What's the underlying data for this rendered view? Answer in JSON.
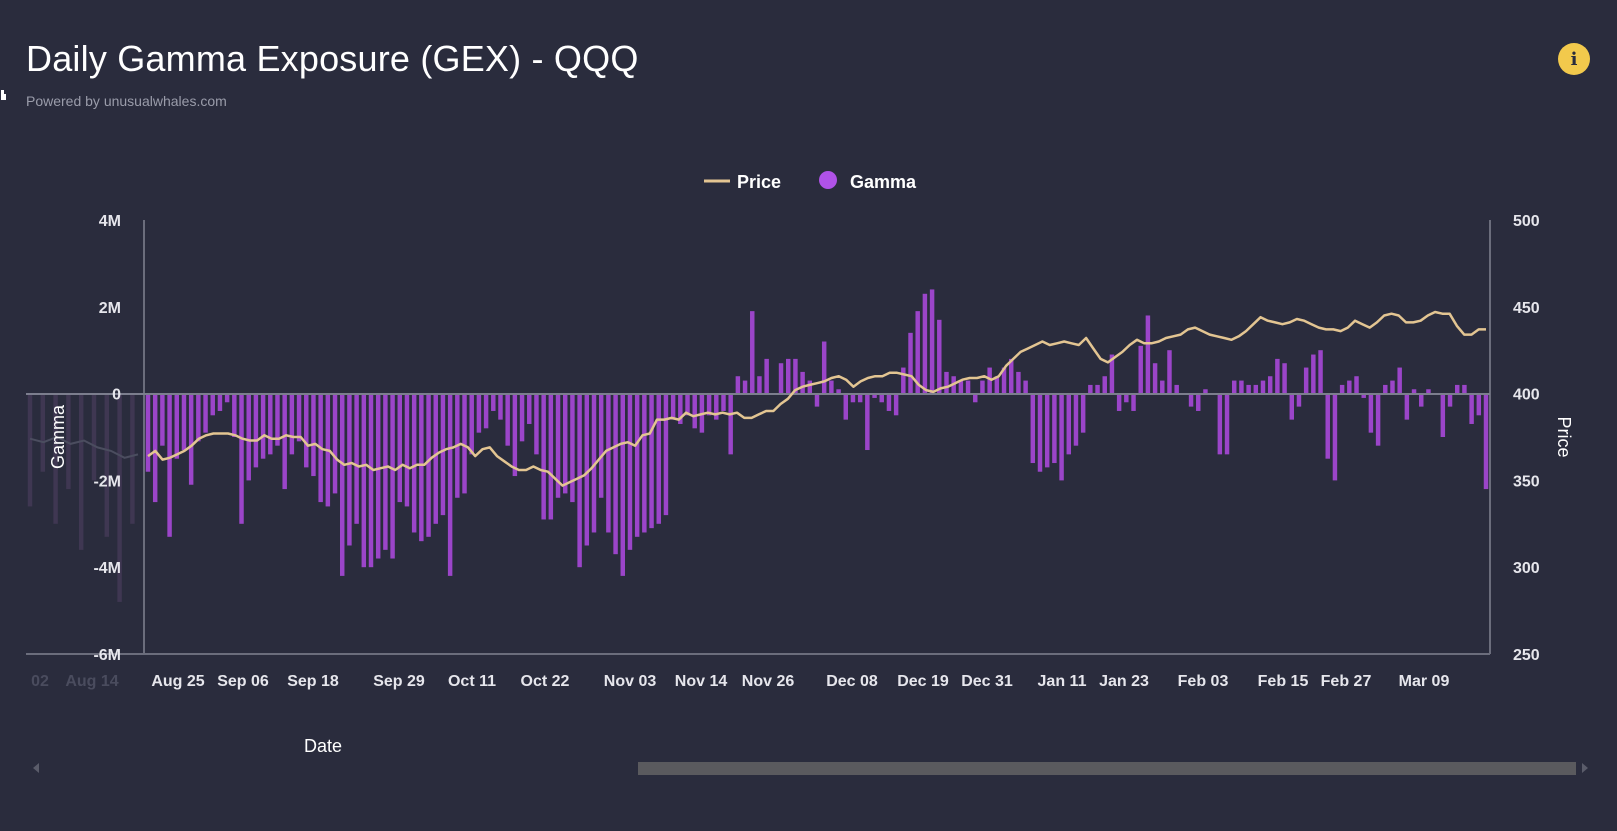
{
  "header": {
    "title": "Daily Gamma Exposure (GEX) - QQQ",
    "subtitle": "Powered by unusualwhales.com",
    "info_icon": "info-icon"
  },
  "colors": {
    "background": "#2a2c3d",
    "gamma": "#9b45c9",
    "price": "#e3c592",
    "axis": "#6b6d7c"
  },
  "chart_data": {
    "type": "bar",
    "title": "Daily Gamma Exposure (GEX) - QQQ",
    "legend": [
      {
        "name": "Price",
        "marker": "line",
        "color": "#e3c592"
      },
      {
        "name": "Gamma",
        "marker": "circle",
        "color": "#b052e8"
      }
    ],
    "legend_position": "top-center",
    "xlabel": "Date",
    "ylabel_left": "Gamma",
    "ylabel_right": "Price",
    "y_left_ticks": [
      "4M",
      "2M",
      "0",
      "-2M",
      "-4M",
      "-6M"
    ],
    "y_left_range": [
      -6000000,
      4000000
    ],
    "y_right_ticks": [
      "500",
      "450",
      "400",
      "350",
      "300",
      "250"
    ],
    "y_right_range": [
      250,
      500
    ],
    "x_ticks_faded": [
      "02",
      "Aug 14"
    ],
    "x_ticks": [
      "Aug 25",
      "Sep 06",
      "Sep 18",
      "Sep 29",
      "Oct 11",
      "Oct 22",
      "Nov 03",
      "Nov 14",
      "Nov 26",
      "Dec 08",
      "Dec 19",
      "Dec 31",
      "Jan 11",
      "Jan 23",
      "Feb 03",
      "Feb 15",
      "Feb 27",
      "Mar 09"
    ],
    "grid": false,
    "series": [
      {
        "name": "Gamma",
        "type": "bar",
        "axis": "left",
        "values": [
          -1.8,
          -2.5,
          -1.2,
          -3.3,
          -1.5,
          -1.3,
          -2.1,
          -1.1,
          -0.9,
          -0.5,
          -0.4,
          -0.2,
          -1.0,
          -3.0,
          -2.0,
          -1.7,
          -1.5,
          -1.4,
          -1.2,
          -2.2,
          -1.4,
          -1.1,
          -1.7,
          -1.9,
          -2.5,
          -2.6,
          -2.3,
          -4.2,
          -3.5,
          -3.0,
          -4.0,
          -4.0,
          -3.8,
          -3.6,
          -3.8,
          -2.5,
          -2.6,
          -3.2,
          -3.4,
          -3.3,
          -3.0,
          -2.8,
          -4.2,
          -2.4,
          -2.3,
          -1.4,
          -0.9,
          -0.8,
          -0.4,
          -0.6,
          -1.2,
          -1.9,
          -1.1,
          -0.7,
          -1.4,
          -2.9,
          -2.9,
          -2.4,
          -2.3,
          -2.5,
          -4.0,
          -3.5,
          -3.2,
          -2.4,
          -3.2,
          -3.7,
          -4.2,
          -3.6,
          -3.3,
          -3.2,
          -3.1,
          -3.0,
          -2.8,
          -0.6,
          -0.7,
          -0.5,
          -0.8,
          -0.9,
          -0.5,
          -0.6,
          -0.4,
          -1.4,
          0.4,
          0.3,
          1.9,
          0.4,
          0.8,
          0.0,
          0.7,
          0.8,
          0.8,
          0.5,
          0.3,
          -0.3,
          1.2,
          0.3,
          0.1,
          -0.6,
          -0.2,
          -0.2,
          -1.3,
          -0.1,
          -0.2,
          -0.4,
          -0.5,
          0.6,
          1.4,
          1.9,
          2.3,
          2.4,
          1.7,
          0.5,
          0.4,
          0.3,
          0.3,
          -0.2,
          0.3,
          0.6,
          0.4,
          0.6,
          0.8,
          0.5,
          0.3,
          -1.6,
          -1.8,
          -1.7,
          -1.6,
          -2.0,
          -1.4,
          -1.2,
          -0.9,
          0.2,
          0.2,
          0.4,
          0.9,
          -0.4,
          -0.2,
          -0.4,
          1.1,
          1.8,
          0.7,
          0.3,
          1.0,
          0.2,
          0.0,
          -0.3,
          -0.4,
          0.1,
          0.0,
          -1.4,
          -1.4,
          0.3,
          0.3,
          0.2,
          0.2,
          0.3,
          0.4,
          0.8,
          0.7,
          -0.6,
          -0.3,
          0.6,
          0.9,
          1.0,
          -1.5,
          -2.0,
          0.2,
          0.3,
          0.4,
          -0.1,
          -0.9,
          -1.2,
          0.2,
          0.3,
          0.6,
          -0.6,
          0.1,
          -0.3,
          0.1,
          0.0,
          -1.0,
          -0.3,
          0.2,
          0.2,
          -0.7,
          -0.5,
          -2.2
        ],
        "color": "#9b45c9"
      },
      {
        "name": "Price",
        "type": "line",
        "axis": "right",
        "values": [
          364,
          367,
          362,
          363,
          365,
          367,
          370,
          374,
          376,
          377,
          377,
          377,
          376,
          374,
          373,
          373,
          376,
          374,
          374,
          376,
          375,
          375,
          370,
          371,
          368,
          367,
          362,
          359,
          360,
          358,
          359,
          356,
          357,
          358,
          356,
          359,
          357,
          359,
          359,
          363,
          366,
          368,
          369,
          371,
          369,
          364,
          368,
          369,
          364,
          361,
          358,
          356,
          356,
          358,
          356,
          355,
          351,
          347,
          349,
          351,
          353,
          357,
          362,
          367,
          369,
          371,
          372,
          370,
          376,
          377,
          385,
          385,
          386,
          385,
          389,
          387,
          388,
          389,
          388,
          389,
          388,
          389,
          386,
          386,
          388,
          390,
          390,
          394,
          397,
          402,
          404,
          405,
          406,
          407,
          409,
          410,
          408,
          404,
          407,
          409,
          410,
          410,
          412,
          412,
          411,
          410,
          405,
          402,
          401,
          403,
          404,
          406,
          408,
          409,
          409,
          410,
          408,
          410,
          416,
          420,
          424,
          426,
          428,
          430,
          428,
          429,
          430,
          429,
          428,
          432,
          426,
          420,
          418,
          421,
          424,
          428,
          431,
          429,
          429,
          430,
          432,
          433,
          434,
          437,
          438,
          436,
          434,
          433,
          432,
          431,
          433,
          436,
          440,
          444,
          442,
          441,
          440,
          441,
          443,
          442,
          440,
          438,
          437,
          437,
          436,
          438,
          442,
          440,
          438,
          441,
          445,
          446,
          445,
          441,
          441,
          442,
          445,
          447,
          446,
          446,
          439,
          434,
          434,
          437,
          437
        ],
        "color": "#e3c592"
      },
      {
        "name": "Price (history)",
        "type": "line",
        "axis": "right",
        "values": [
          374,
          372,
          375,
          371,
          373,
          369,
          367,
          363,
          365
        ],
        "color": "#4b4d5f"
      },
      {
        "name": "Gamma (history)",
        "type": "bar",
        "axis": "left",
        "values": [
          -2.6,
          -1.8,
          -3.0,
          -2.2,
          -3.6,
          -2.0,
          -3.3,
          -4.8,
          -3.0
        ],
        "color": "#3f3752"
      }
    ]
  },
  "scrollbar": {
    "position_label": "chart-range-scrollbar"
  }
}
